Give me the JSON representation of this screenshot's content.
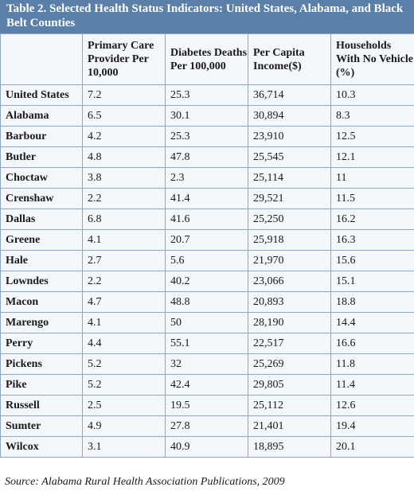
{
  "title": "Table 2. Selected Health Status Indicators: United States, Alabama, and Black Belt Counties",
  "columns": [
    "",
    "Primary Care Provider Per 10,000",
    "Diabetes Deaths Per 100,000",
    "Per Capita Income($)",
    "Households With No Vehicle (%)"
  ],
  "rows": [
    [
      "United States",
      "7.2",
      "25.3",
      "36,714",
      "10.3"
    ],
    [
      "Alabama",
      "6.5",
      "30.1",
      "30,894",
      "8.3"
    ],
    [
      "Barbour",
      "4.2",
      "25.3",
      "23,910",
      "12.5"
    ],
    [
      "Butler",
      "4.8",
      "47.8",
      "25,545",
      "12.1"
    ],
    [
      "Choctaw",
      "3.8",
      "2.3",
      "25,114",
      "11"
    ],
    [
      "Crenshaw",
      "2.2",
      "41.4",
      "29,521",
      "11.5"
    ],
    [
      "Dallas",
      "6.8",
      "41.6",
      "25,250",
      "16.2"
    ],
    [
      "Greene",
      "4.1",
      "20.7",
      "25,918",
      "16.3"
    ],
    [
      "Hale",
      "2.7",
      "5.6",
      "21,970",
      "15.6"
    ],
    [
      "Lowndes",
      "2.2",
      "40.2",
      "23,066",
      "15.1"
    ],
    [
      "Macon",
      "4.7",
      "48.8",
      "20,893",
      "18.8"
    ],
    [
      "Marengo",
      "4.1",
      "50",
      "28,190",
      "14.4"
    ],
    [
      "Perry",
      "4.4",
      "55.1",
      "22,517",
      "16.6"
    ],
    [
      "Pickens",
      "5.2",
      "32",
      "25,269",
      "11.8"
    ],
    [
      "Pike",
      "5.2",
      "42.4",
      "29,805",
      "11.4"
    ],
    [
      "Russell",
      "2.5",
      "19.5",
      "25,112",
      "12.6"
    ],
    [
      "Sumter",
      "4.9",
      "27.8",
      "21,401",
      "19.4"
    ],
    [
      "Wilcox",
      "3.1",
      "40.9",
      "18,895",
      "20.1"
    ]
  ],
  "source": "Source: Alabama Rural Health Association Publications, 2009",
  "colors": {
    "title_bar": "#5a7fa8",
    "cell_background": "#f3f6fa",
    "grid_lines": "#8ea6c3"
  }
}
